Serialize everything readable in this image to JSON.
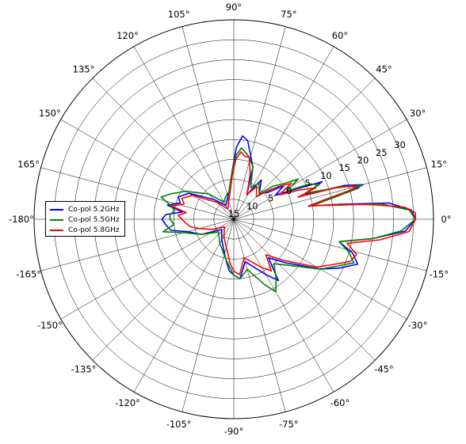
{
  "chart_data": {
    "type": "polar-line",
    "title": "",
    "angle_unit": "degrees",
    "angle_ticks": [
      "0°",
      "15°",
      "30°",
      "45°",
      "60°",
      "75°",
      "90°",
      "105°",
      "120°",
      "135°",
      "150°",
      "165°",
      "-180°",
      "-165°",
      "-150°",
      "-135°",
      "-120°",
      "-105°",
      "-90°",
      "-75°",
      "-60°",
      "-45°",
      "-30°",
      "-15°"
    ],
    "angle_tick_values": [
      0,
      15,
      30,
      45,
      60,
      75,
      90,
      105,
      120,
      135,
      150,
      165,
      180,
      195,
      210,
      225,
      240,
      255,
      270,
      285,
      300,
      315,
      330,
      345
    ],
    "radial_ticks": [
      "15",
      "10",
      "5",
      "0",
      "5",
      "10",
      "15",
      "20",
      "25",
      "30"
    ],
    "radial_tick_values": [
      -15,
      -10,
      -5,
      0,
      5,
      10,
      15,
      20,
      25,
      30
    ],
    "r_range": [
      -15,
      35
    ],
    "grid": true,
    "legend_position": "center-left",
    "series": [
      {
        "name": "Co-pol 5.2GHz",
        "color": "#0000ff",
        "points": [
          [
            0,
            30.5
          ],
          [
            3,
            29.5
          ],
          [
            6,
            24
          ],
          [
            8,
            12
          ],
          [
            10,
            4
          ],
          [
            12,
            8
          ],
          [
            14,
            16
          ],
          [
            15,
            18.5
          ],
          [
            17,
            14
          ],
          [
            19,
            4
          ],
          [
            21,
            6
          ],
          [
            23,
            9
          ],
          [
            26,
            2
          ],
          [
            30,
            -3
          ],
          [
            34,
            0
          ],
          [
            38,
            -4
          ],
          [
            45,
            -6
          ],
          [
            55,
            -3
          ],
          [
            62,
            -8
          ],
          [
            70,
            -1
          ],
          [
            76,
            2
          ],
          [
            80,
            5
          ],
          [
            84,
            6
          ],
          [
            88,
            3
          ],
          [
            92,
            -3
          ],
          [
            100,
            -8
          ],
          [
            110,
            -10
          ],
          [
            120,
            -11
          ],
          [
            135,
            -8
          ],
          [
            150,
            -2
          ],
          [
            158,
            0
          ],
          [
            163,
            -1
          ],
          [
            168,
            2
          ],
          [
            172,
            -2
          ],
          [
            176,
            2
          ],
          [
            180,
            3
          ],
          [
            185,
            2
          ],
          [
            190,
            1
          ],
          [
            195,
            -3
          ],
          [
            205,
            -6
          ],
          [
            220,
            -11
          ],
          [
            240,
            -9
          ],
          [
            258,
            -5
          ],
          [
            265,
            -2
          ],
          [
            270,
            -1
          ],
          [
            276,
            0
          ],
          [
            285,
            -4
          ],
          [
            300,
            1
          ],
          [
            306,
            4
          ],
          [
            312,
            -2
          ],
          [
            320,
            2
          ],
          [
            330,
            10
          ],
          [
            335,
            14
          ],
          [
            340,
            18
          ],
          [
            344,
            16
          ],
          [
            348,
            12
          ],
          [
            352,
            20
          ],
          [
            356,
            28
          ],
          [
            360,
            30.5
          ]
        ]
      },
      {
        "name": "Co-pol 5.5GHz",
        "color": "#008000",
        "points": [
          [
            0,
            30.5
          ],
          [
            3,
            29
          ],
          [
            6,
            22
          ],
          [
            8,
            10
          ],
          [
            10,
            5
          ],
          [
            12,
            10
          ],
          [
            14,
            17
          ],
          [
            15,
            18
          ],
          [
            17,
            12
          ],
          [
            20,
            4
          ],
          [
            22,
            8
          ],
          [
            25,
            6
          ],
          [
            28,
            0
          ],
          [
            32,
            4
          ],
          [
            36,
            0
          ],
          [
            40,
            -2
          ],
          [
            45,
            -6
          ],
          [
            55,
            -4
          ],
          [
            62,
            -6
          ],
          [
            70,
            -1
          ],
          [
            76,
            1
          ],
          [
            80,
            2
          ],
          [
            84,
            3
          ],
          [
            88,
            1
          ],
          [
            92,
            -3
          ],
          [
            100,
            -8
          ],
          [
            110,
            -9
          ],
          [
            120,
            -10
          ],
          [
            135,
            -6
          ],
          [
            150,
            -1
          ],
          [
            158,
            2
          ],
          [
            163,
            4
          ],
          [
            168,
            1
          ],
          [
            172,
            0
          ],
          [
            176,
            1
          ],
          [
            180,
            1
          ],
          [
            185,
            0
          ],
          [
            190,
            3
          ],
          [
            195,
            -2
          ],
          [
            205,
            -6
          ],
          [
            220,
            -10
          ],
          [
            240,
            -8
          ],
          [
            258,
            -5
          ],
          [
            265,
            -3
          ],
          [
            270,
            -1
          ],
          [
            276,
            0
          ],
          [
            285,
            -2
          ],
          [
            295,
            3
          ],
          [
            300,
            6
          ],
          [
            306,
            3
          ],
          [
            312,
            0
          ],
          [
            320,
            3
          ],
          [
            330,
            10
          ],
          [
            335,
            13
          ],
          [
            340,
            17
          ],
          [
            344,
            15
          ],
          [
            348,
            12
          ],
          [
            352,
            20
          ],
          [
            356,
            27
          ],
          [
            360,
            30.5
          ]
        ]
      },
      {
        "name": "Co-pol 5.8GHz",
        "color": "#ff0000",
        "points": [
          [
            0,
            30.5
          ],
          [
            2,
            30.5
          ],
          [
            4,
            28
          ],
          [
            6,
            20
          ],
          [
            8,
            12
          ],
          [
            10,
            4
          ],
          [
            12,
            8
          ],
          [
            14,
            15
          ],
          [
            15,
            17
          ],
          [
            17,
            13
          ],
          [
            19,
            2
          ],
          [
            21,
            7
          ],
          [
            24,
            3
          ],
          [
            28,
            -2
          ],
          [
            32,
            2
          ],
          [
            36,
            -1
          ],
          [
            40,
            -4
          ],
          [
            45,
            -7
          ],
          [
            55,
            -5
          ],
          [
            62,
            -8
          ],
          [
            70,
            -3
          ],
          [
            76,
            1
          ],
          [
            80,
            1
          ],
          [
            84,
            2
          ],
          [
            88,
            0
          ],
          [
            92,
            -4
          ],
          [
            100,
            -9
          ],
          [
            110,
            -11
          ],
          [
            120,
            -12
          ],
          [
            135,
            -9
          ],
          [
            150,
            -3
          ],
          [
            158,
            -1
          ],
          [
            163,
            -2
          ],
          [
            168,
            1
          ],
          [
            172,
            -3
          ],
          [
            176,
            -1
          ],
          [
            180,
            -2
          ],
          [
            185,
            -3
          ],
          [
            190,
            -4
          ],
          [
            195,
            -6
          ],
          [
            205,
            -9
          ],
          [
            220,
            -12
          ],
          [
            240,
            -10
          ],
          [
            258,
            -7
          ],
          [
            265,
            -4
          ],
          [
            270,
            -2
          ],
          [
            276,
            -1
          ],
          [
            285,
            -5
          ],
          [
            300,
            -1
          ],
          [
            306,
            1
          ],
          [
            312,
            -3
          ],
          [
            320,
            1
          ],
          [
            330,
            9
          ],
          [
            335,
            12
          ],
          [
            340,
            16
          ],
          [
            344,
            17
          ],
          [
            348,
            14
          ],
          [
            352,
            22
          ],
          [
            356,
            29
          ],
          [
            360,
            30.5
          ]
        ]
      }
    ]
  }
}
